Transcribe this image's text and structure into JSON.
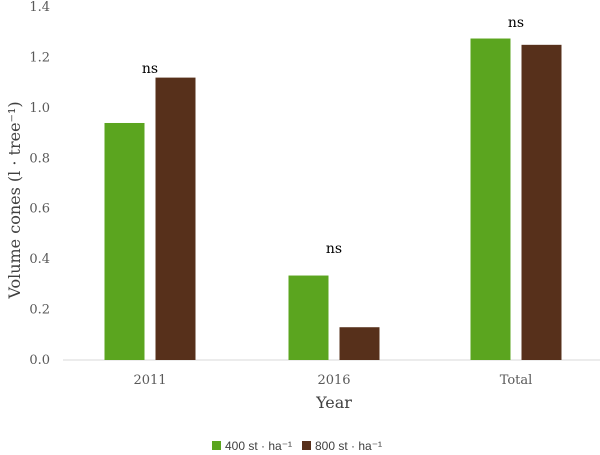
{
  "chart_data": {
    "type": "bar",
    "categories": [
      "2011",
      "2016",
      "Total"
    ],
    "series": [
      {
        "name": "400 st · ha⁻¹",
        "color": "#5ba51f",
        "values": [
          0.94,
          0.335,
          1.275
        ]
      },
      {
        "name": "800 st · ha⁻¹",
        "color": "#57301b",
        "values": [
          1.12,
          0.13,
          1.25
        ]
      }
    ],
    "annotations": [
      "ns",
      "ns",
      "ns"
    ],
    "title": "",
    "xlabel": "Year",
    "ylabel": "Volume cones (l · tree⁻¹)",
    "ylim": [
      0,
      1.4
    ],
    "yticks": [
      "0.0",
      "0.2",
      "0.4",
      "0.6",
      "0.8",
      "1.0",
      "1.2",
      "1.4"
    ],
    "grid": false,
    "legend_position": "bottom"
  }
}
